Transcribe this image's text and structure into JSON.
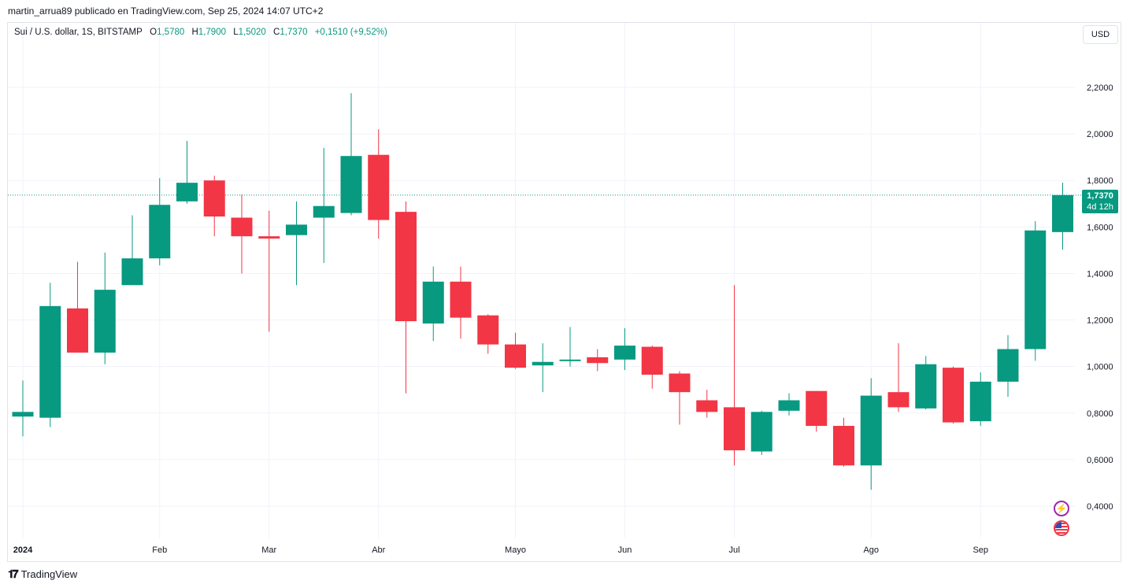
{
  "publisher_line": "martin_arrua89 publicado en TradingView.com, Sep 25, 2024 14:07 UTC+2",
  "legend": {
    "symbol": "Sui / U.S. dollar, 1S, BITSTAMP",
    "open_label": "O",
    "open": "1,5780",
    "high_label": "H",
    "high": "1,7900",
    "low_label": "L",
    "low": "1,5020",
    "close_label": "C",
    "close": "1,7370",
    "change": "+0,1510 (+9,52%)"
  },
  "currency": "USD",
  "price_badge": {
    "price": "1,7370",
    "countdown": "4d 12h"
  },
  "footer": {
    "brand": "TradingView",
    "logo_icon": "tradingview-logo-icon"
  },
  "icons": {
    "flash": "flash-icon",
    "flag": "us-flag-icon"
  },
  "colors": {
    "up": "#089981",
    "down": "#f23645",
    "grid": "#f0f3fa",
    "last_price_line": "#089981"
  },
  "chart_data": {
    "type": "candlestick",
    "interval": "1 week",
    "y_axis": {
      "position": "right",
      "range": [
        0.28,
        2.48
      ],
      "ticks": [
        0.4,
        0.6,
        0.8,
        1.0,
        1.2,
        1.4,
        1.6,
        1.8,
        2.0,
        2.2
      ],
      "tick_labels": [
        "0,4000",
        "0,6000",
        "0,8000",
        "1,0000",
        "1,2000",
        "1,4000",
        "1,6000",
        "1,8000",
        "2,0000",
        "2,2000"
      ]
    },
    "x_axis": {
      "labels": [
        {
          "text": "2024",
          "index": 0,
          "bold": true
        },
        {
          "text": "Feb",
          "index": 5
        },
        {
          "text": "Mar",
          "index": 9
        },
        {
          "text": "Abr",
          "index": 13
        },
        {
          "text": "Mayo",
          "index": 18
        },
        {
          "text": "Jun",
          "index": 22
        },
        {
          "text": "Jul",
          "index": 26
        },
        {
          "text": "Ago",
          "index": 31
        },
        {
          "text": "Sep",
          "index": 35
        }
      ]
    },
    "last_price": 1.737,
    "candles": [
      {
        "o": 0.785,
        "h": 0.94,
        "l": 0.7,
        "c": 0.805
      },
      {
        "o": 0.78,
        "h": 1.36,
        "l": 0.74,
        "c": 1.26
      },
      {
        "o": 1.25,
        "h": 1.45,
        "l": 1.06,
        "c": 1.06
      },
      {
        "o": 1.06,
        "h": 1.49,
        "l": 1.01,
        "c": 1.33
      },
      {
        "o": 1.35,
        "h": 1.65,
        "l": 1.35,
        "c": 1.465
      },
      {
        "o": 1.465,
        "h": 1.81,
        "l": 1.435,
        "c": 1.695
      },
      {
        "o": 1.71,
        "h": 1.97,
        "l": 1.7,
        "c": 1.79
      },
      {
        "o": 1.8,
        "h": 1.82,
        "l": 1.56,
        "c": 1.645
      },
      {
        "o": 1.64,
        "h": 1.74,
        "l": 1.4,
        "c": 1.56
      },
      {
        "o": 1.56,
        "h": 1.67,
        "l": 1.15,
        "c": 1.55
      },
      {
        "o": 1.565,
        "h": 1.71,
        "l": 1.35,
        "c": 1.61
      },
      {
        "o": 1.64,
        "h": 1.94,
        "l": 1.445,
        "c": 1.69
      },
      {
        "o": 1.66,
        "h": 2.175,
        "l": 1.65,
        "c": 1.905
      },
      {
        "o": 1.91,
        "h": 2.02,
        "l": 1.55,
        "c": 1.63
      },
      {
        "o": 1.665,
        "h": 1.71,
        "l": 0.885,
        "c": 1.195
      },
      {
        "o": 1.185,
        "h": 1.43,
        "l": 1.11,
        "c": 1.365
      },
      {
        "o": 1.365,
        "h": 1.43,
        "l": 1.12,
        "c": 1.21
      },
      {
        "o": 1.22,
        "h": 1.225,
        "l": 1.055,
        "c": 1.095
      },
      {
        "o": 1.095,
        "h": 1.145,
        "l": 0.99,
        "c": 0.995
      },
      {
        "o": 1.005,
        "h": 1.1,
        "l": 0.89,
        "c": 1.02
      },
      {
        "o": 1.025,
        "h": 1.17,
        "l": 1.0,
        "c": 1.03
      },
      {
        "o": 1.04,
        "h": 1.075,
        "l": 0.98,
        "c": 1.015
      },
      {
        "o": 1.03,
        "h": 1.165,
        "l": 0.985,
        "c": 1.09
      },
      {
        "o": 1.085,
        "h": 1.09,
        "l": 0.905,
        "c": 0.965
      },
      {
        "o": 0.97,
        "h": 0.98,
        "l": 0.75,
        "c": 0.89
      },
      {
        "o": 0.855,
        "h": 0.9,
        "l": 0.78,
        "c": 0.805
      },
      {
        "o": 0.825,
        "h": 1.35,
        "l": 0.575,
        "c": 0.64
      },
      {
        "o": 0.635,
        "h": 0.81,
        "l": 0.62,
        "c": 0.805
      },
      {
        "o": 0.81,
        "h": 0.885,
        "l": 0.79,
        "c": 0.855
      },
      {
        "o": 0.895,
        "h": 0.895,
        "l": 0.72,
        "c": 0.745
      },
      {
        "o": 0.745,
        "h": 0.78,
        "l": 0.57,
        "c": 0.575
      },
      {
        "o": 0.575,
        "h": 0.95,
        "l": 0.47,
        "c": 0.875
      },
      {
        "o": 0.89,
        "h": 1.1,
        "l": 0.805,
        "c": 0.825
      },
      {
        "o": 0.82,
        "h": 1.045,
        "l": 0.815,
        "c": 1.01
      },
      {
        "o": 0.995,
        "h": 1.0,
        "l": 0.755,
        "c": 0.76
      },
      {
        "o": 0.765,
        "h": 0.975,
        "l": 0.745,
        "c": 0.935
      },
      {
        "o": 0.935,
        "h": 1.135,
        "l": 0.87,
        "c": 1.075
      },
      {
        "o": 1.075,
        "h": 1.625,
        "l": 1.025,
        "c": 1.585
      },
      {
        "o": 1.578,
        "h": 1.79,
        "l": 1.502,
        "c": 1.737
      }
    ]
  }
}
